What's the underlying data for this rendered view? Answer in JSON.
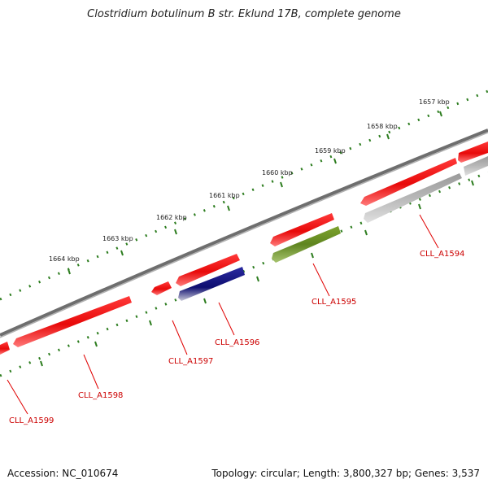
{
  "title": "Clostridium botulinum B str. Eklund 17B, complete genome",
  "footer": {
    "accession": "Accession: NC_010674",
    "summary": "Topology: circular; Length: 3,800,327 bp; Genes: 3,537"
  },
  "colors": {
    "backbone": "#7a7a7a",
    "tick": "#2d7d1f",
    "label_line": "#e00000",
    "label_text": "#cc0000",
    "forward_gene": "#ee1010",
    "reverse_gene_gray": "#b8b8b8",
    "reverse_gene_green": "#6b8e23",
    "reverse_gene_navy": "#14148a"
  },
  "kbp_labels": [
    "1657 kbp",
    "1658 kbp",
    "1659 kbp",
    "1660 kbp",
    "1661 kbp",
    "1662 kbp",
    "1663 kbp",
    "1664 kbp"
  ],
  "gene_labels": [
    "CLL_A1594",
    "CLL_A1595",
    "CLL_A1596",
    "CLL_A1597",
    "CLL_A1598",
    "CLL_A1599"
  ]
}
